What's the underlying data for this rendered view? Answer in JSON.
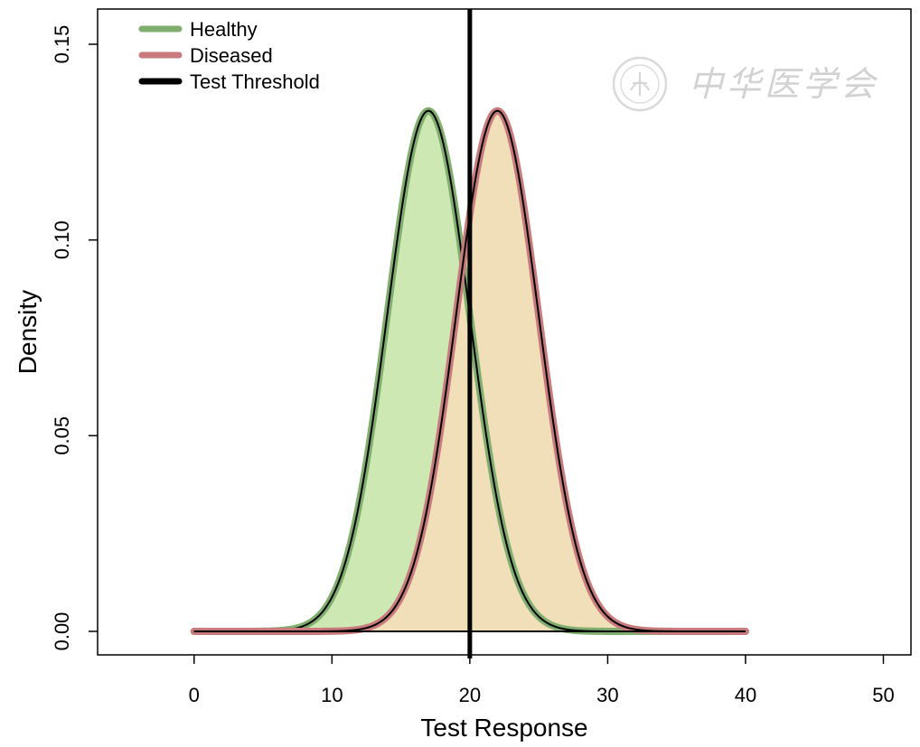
{
  "chart_data": {
    "type": "area",
    "title": "",
    "xlabel": "Test Response",
    "ylabel": "Density",
    "xlim": [
      -7,
      52
    ],
    "ylim": [
      -0.006,
      0.159
    ],
    "x_ticks": [
      0,
      10,
      20,
      30,
      40,
      50
    ],
    "x_tick_labels": [
      "0",
      "10",
      "20",
      "30",
      "40",
      "50"
    ],
    "y_ticks": [
      0.0,
      0.05,
      0.1,
      0.15
    ],
    "y_tick_labels": [
      "0.00",
      "0.05",
      "0.10",
      "0.15"
    ],
    "grid": false,
    "legend_position": "top-left",
    "x_range": [
      0,
      40
    ],
    "series": [
      {
        "name": "Healthy",
        "distribution": "normal",
        "mean": 17,
        "sd": 3,
        "peak_density": 0.133,
        "line_color": "#7fae6e",
        "fill_color": "#cde8b2"
      },
      {
        "name": "Diseased",
        "distribution": "normal",
        "mean": 22,
        "sd": 3,
        "peak_density": 0.133,
        "line_color": "#c87a7d",
        "fill_color": "#f0dfb8"
      }
    ],
    "threshold": {
      "name": "Test Threshold",
      "x": 20,
      "color": "#000000"
    }
  },
  "watermark": {
    "text": "中华医学会"
  }
}
